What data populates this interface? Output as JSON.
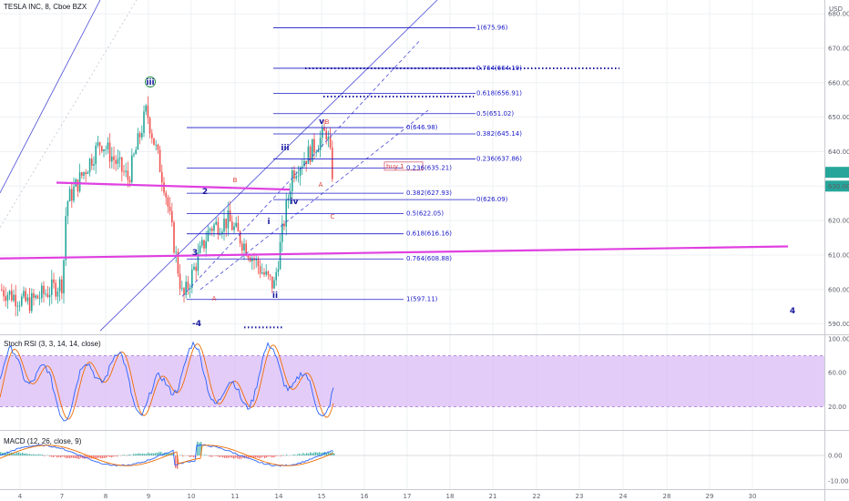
{
  "header": {
    "title": "TESLA INC, 8, Cboe BZX",
    "currency": "USD"
  },
  "colors": {
    "up": "#26a69a",
    "down": "#ef5350",
    "fib": "#1a1ac8",
    "magenta": "#e040e0",
    "stoch_k": "#2962ff",
    "stoch_d": "#ef6c00",
    "band": "#d9b6f7"
  },
  "chart_data": [
    {
      "type": "candlestick",
      "title": "TESLA INC, 8, Cboe BZX",
      "y_ticks": [
        "680.00",
        "670.00",
        "660.00",
        "650.00",
        "640.00",
        "630.00",
        "620.00",
        "610.00",
        "600.00",
        "590.00"
      ],
      "ylim": [
        587,
        684
      ],
      "x_ticks": [
        "4",
        "7",
        "8",
        "9",
        "10",
        "11",
        "14",
        "15",
        "16",
        "17",
        "18",
        "21",
        "22",
        "23",
        "24",
        "28",
        "29",
        "30"
      ],
      "price_tags": [
        {
          "value": 634.0,
          "color": "#26a69a"
        },
        {
          "value": 630.0,
          "color": "#26a69a"
        }
      ],
      "fib_upper": [
        {
          "label": "1(675.96)",
          "value": 675.96
        },
        {
          "label": "0.764(664.19)",
          "value": 664.19
        },
        {
          "label": "0.618(656.91)",
          "value": 656.91
        },
        {
          "label": "0.5(651.02)",
          "value": 651.02
        },
        {
          "label": "0.382(645.14)",
          "value": 645.14
        },
        {
          "label": "0.236(637.86)",
          "value": 637.86
        },
        {
          "label": "0(626.09)",
          "value": 626.09
        }
      ],
      "fib_lower": [
        {
          "label": "0(646.98)",
          "value": 646.98
        },
        {
          "label": "0.236(635.21)",
          "value": 635.21
        },
        {
          "label": "0.382(627.93)",
          "value": 627.93
        },
        {
          "label": "0.5(622.05)",
          "value": 622.05
        },
        {
          "label": "0.618(616.16)",
          "value": 616.16
        },
        {
          "label": "0.764(608.88)",
          "value": 608.88
        },
        {
          "label": "1(597.11)",
          "value": 597.11
        }
      ],
      "wave_labels": [
        "iii",
        "iii",
        "iv",
        "i",
        "ii",
        "v",
        "4",
        "-4",
        "3",
        "2"
      ],
      "corrective_labels": [
        "B",
        "A",
        "C",
        "A",
        "B"
      ],
      "annotation": "buy 1"
    },
    {
      "type": "line",
      "title": "Stoch RSI (3, 3, 14, 14, close)",
      "y_ticks": [
        "100.00",
        "60.00",
        "20.00"
      ],
      "ylim": [
        0,
        100
      ],
      "band": [
        20,
        80
      ]
    },
    {
      "type": "bar",
      "title": "MACD (12, 26, close, 9)",
      "y_ticks": [
        "0.00",
        "-10.00"
      ]
    }
  ]
}
